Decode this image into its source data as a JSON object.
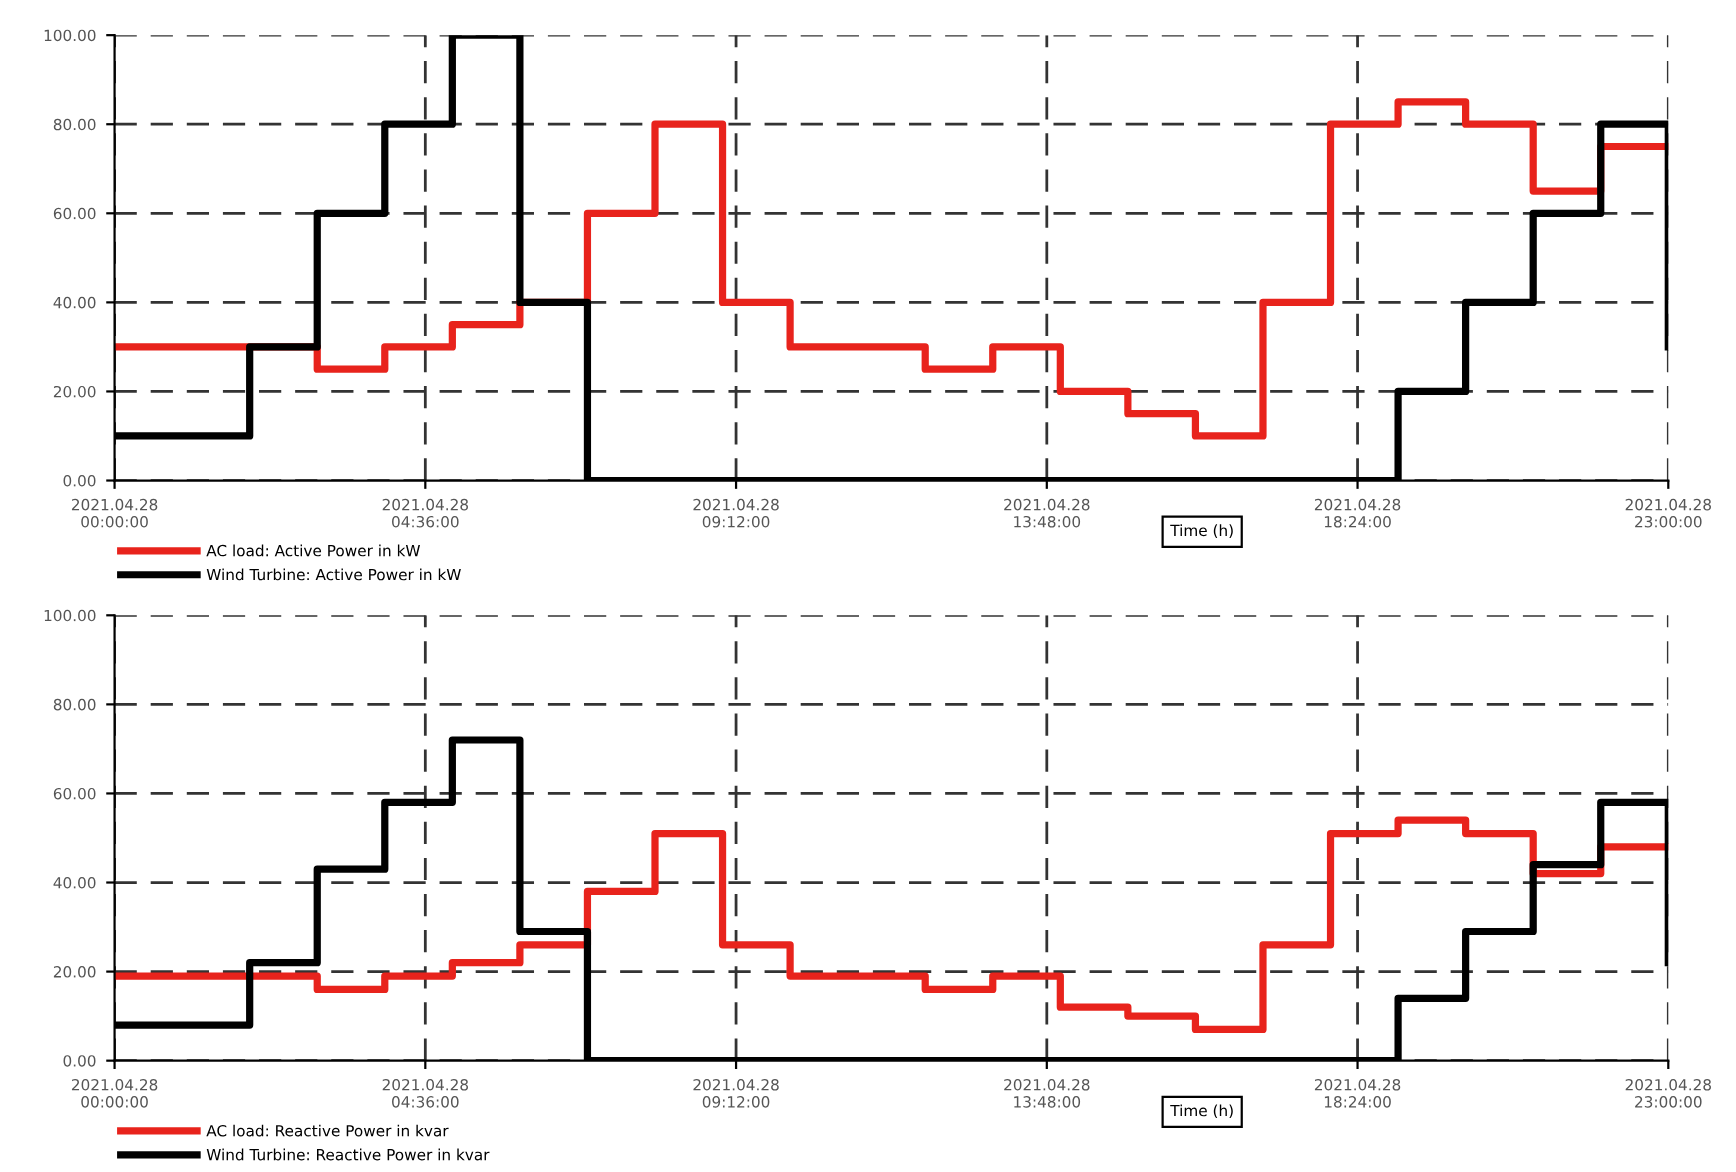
{
  "chart_data": [
    {
      "type": "step",
      "xlabel": "Time (h)",
      "x": [
        "2021-04-28T00:00",
        "2021-04-28T01:00",
        "2021-04-28T02:00",
        "2021-04-28T03:00",
        "2021-04-28T04:00",
        "2021-04-28T05:00",
        "2021-04-28T06:00",
        "2021-04-28T07:00",
        "2021-04-28T08:00",
        "2021-04-28T09:00",
        "2021-04-28T10:00",
        "2021-04-28T11:00",
        "2021-04-28T12:00",
        "2021-04-28T13:00",
        "2021-04-28T14:00",
        "2021-04-28T15:00",
        "2021-04-28T16:00",
        "2021-04-28T17:00",
        "2021-04-28T18:00",
        "2021-04-28T19:00",
        "2021-04-28T20:00",
        "2021-04-28T21:00",
        "2021-04-28T22:00",
        "2021-04-28T23:00"
      ],
      "series": [
        {
          "name": "AC load: Active Power in kW",
          "color": "#e8231c",
          "values": [
            30,
            30,
            30,
            25,
            30,
            35,
            40,
            60,
            80,
            40,
            30,
            30,
            25,
            30,
            20,
            15,
            10,
            40,
            80,
            85,
            80,
            65,
            75,
            75
          ]
        },
        {
          "name": "Wind Turbine: Active Power in kW",
          "color": "#000000",
          "values": [
            10,
            10,
            30,
            60,
            80,
            100,
            40,
            0,
            0,
            0,
            0,
            0,
            0,
            0,
            0,
            0,
            0,
            0,
            0,
            20,
            40,
            60,
            80,
            30
          ]
        }
      ],
      "xlim": [
        "2021-04-28T00:00",
        "2021-04-28T23:00"
      ],
      "ylim": [
        0,
        100
      ],
      "xticks": [
        {
          "value": "2021-04-28T00:00",
          "label": "2021.04.28\n00:00:00"
        },
        {
          "value": "2021-04-28T04:36",
          "label": "2021.04.28\n04:36:00"
        },
        {
          "value": "2021-04-28T09:12",
          "label": "2021.04.28\n09:12:00"
        },
        {
          "value": "2021-04-28T13:48",
          "label": "2021.04.28\n13:48:00"
        },
        {
          "value": "2021-04-28T18:24",
          "label": "2021.04.28\n18:24:00"
        },
        {
          "value": "2021-04-28T23:00",
          "label": "2021.04.28\n23:00:00"
        }
      ],
      "yticks": [
        {
          "value": 0,
          "label": "0.00"
        },
        {
          "value": 20,
          "label": "20.00"
        },
        {
          "value": 40,
          "label": "40.00"
        },
        {
          "value": 60,
          "label": "60.00"
        },
        {
          "value": 80,
          "label": "80.00"
        },
        {
          "value": 100,
          "label": "100.00"
        }
      ],
      "grid": true,
      "legend": "bottom left",
      "line_style": "solid"
    },
    {
      "type": "step",
      "xlabel": "Time (h)",
      "x": [
        "2021-04-28T00:00",
        "2021-04-28T01:00",
        "2021-04-28T02:00",
        "2021-04-28T03:00",
        "2021-04-28T04:00",
        "2021-04-28T05:00",
        "2021-04-28T06:00",
        "2021-04-28T07:00",
        "2021-04-28T08:00",
        "2021-04-28T09:00",
        "2021-04-28T10:00",
        "2021-04-28T11:00",
        "2021-04-28T12:00",
        "2021-04-28T13:00",
        "2021-04-28T14:00",
        "2021-04-28T15:00",
        "2021-04-28T16:00",
        "2021-04-28T17:00",
        "2021-04-28T18:00",
        "2021-04-28T19:00",
        "2021-04-28T20:00",
        "2021-04-28T21:00",
        "2021-04-28T22:00",
        "2021-04-28T23:00"
      ],
      "series": [
        {
          "name": "AC load: Reactive Power in kvar",
          "color": "#e8231c",
          "values": [
            19,
            19,
            19,
            16,
            19,
            22,
            26,
            38,
            51,
            26,
            19,
            19,
            16,
            19,
            12,
            10,
            7,
            26,
            51,
            54,
            51,
            42,
            48,
            48
          ]
        },
        {
          "name": "Wind Turbine: Reactive Power in kvar",
          "color": "#000000",
          "values": [
            8,
            8,
            22,
            43,
            58,
            72,
            29,
            0,
            0,
            0,
            0,
            0,
            0,
            0,
            0,
            0,
            0,
            0,
            0,
            14,
            29,
            44,
            58,
            22
          ]
        }
      ],
      "xlim": [
        "2021-04-28T00:00",
        "2021-04-28T23:00"
      ],
      "ylim": [
        0,
        100
      ],
      "xticks": [
        {
          "value": "2021-04-28T00:00",
          "label": "2021.04.28\n00:00:00"
        },
        {
          "value": "2021-04-28T04:36",
          "label": "2021.04.28\n04:36:00"
        },
        {
          "value": "2021-04-28T09:12",
          "label": "2021.04.28\n09:12:00"
        },
        {
          "value": "2021-04-28T13:48",
          "label": "2021.04.28\n13:48:00"
        },
        {
          "value": "2021-04-28T18:24",
          "label": "2021.04.28\n18:24:00"
        },
        {
          "value": "2021-04-28T23:00",
          "label": "2021.04.28\n23:00:00"
        }
      ],
      "yticks": [
        {
          "value": 0,
          "label": "0.00"
        },
        {
          "value": 20,
          "label": "20.00"
        },
        {
          "value": 40,
          "label": "40.00"
        },
        {
          "value": 60,
          "label": "60.00"
        },
        {
          "value": 80,
          "label": "80.00"
        },
        {
          "value": 100,
          "label": "100.00"
        }
      ],
      "grid": true,
      "legend": "bottom left",
      "line_style": "solid"
    }
  ]
}
